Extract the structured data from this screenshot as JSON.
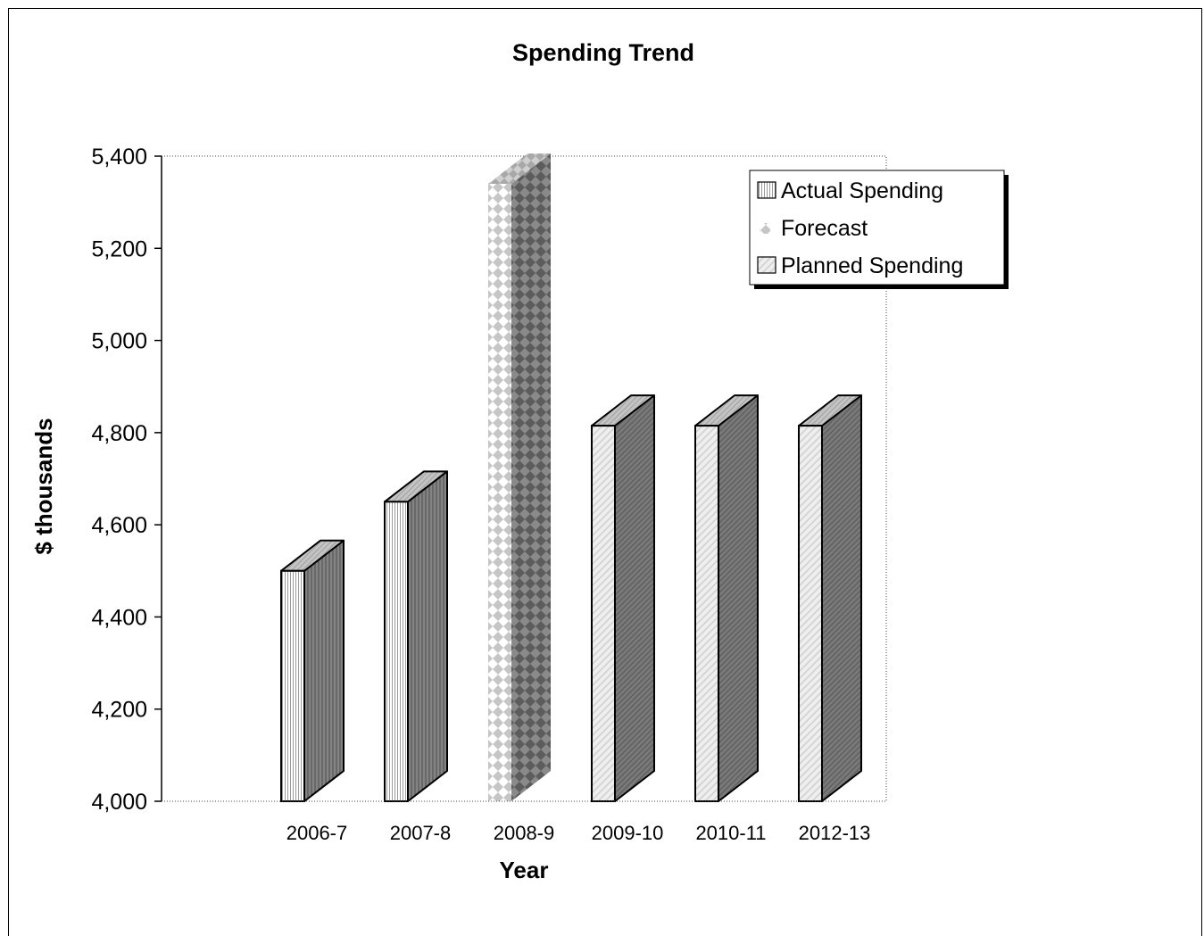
{
  "chart_data": {
    "type": "bar",
    "title": "Spending Trend",
    "xlabel": "Year",
    "ylabel": "$ thousands",
    "categories": [
      "2006-7",
      "2007-8",
      "2008-9",
      "2009-10",
      "2010-11",
      "2012-13"
    ],
    "series": [
      {
        "name": "Actual Spending",
        "values": [
          4500,
          4650,
          null,
          null,
          null,
          null
        ]
      },
      {
        "name": "Forecast",
        "values": [
          null,
          null,
          5340,
          null,
          null,
          null
        ]
      },
      {
        "name": "Planned Spending",
        "values": [
          null,
          null,
          null,
          4815,
          4815,
          4815
        ]
      }
    ],
    "ylim": [
      4000,
      5400
    ],
    "yticks": [
      "4,000",
      "4,200",
      "4,400",
      "4,600",
      "4,800",
      "5,000",
      "5,200",
      "5,400"
    ],
    "ytick_values": [
      4000,
      4200,
      4400,
      4600,
      4800,
      5000,
      5200,
      5400
    ],
    "grid": "dotted plot-area border",
    "legend_position": "top-right",
    "style": "3d-column"
  },
  "colors": {
    "front_light": "#f2f2f2",
    "side_dark": "#6e6e6e",
    "top": "#bdbdbd",
    "forecast_light": "#c8c8c8",
    "forecast_dark": "#8c8c8c"
  }
}
